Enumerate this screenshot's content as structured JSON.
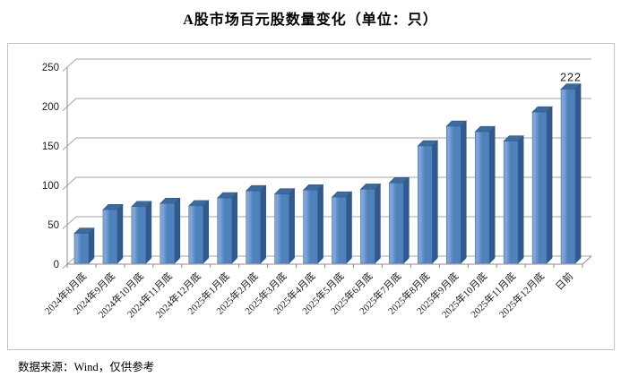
{
  "title": "A股市场百元股数量变化（单位：只）",
  "source_note": "数据来源：Wind，仅供参考",
  "chart_data": {
    "type": "bar",
    "style": "3d-column",
    "title": "A股市场百元股数量变化（单位：只）",
    "unit": "只",
    "categories": [
      "2024年8月底",
      "2024年9月底",
      "2024年10月底",
      "2024年11月底",
      "2024年12月底",
      "2025年1月底",
      "2025年2月底",
      "2025年3月底",
      "2025年4月底",
      "2025年5月底",
      "2025年6月底",
      "2025年7月底",
      "2025年8月底",
      "2025年9月底",
      "2025年10月底",
      "2025年11月底",
      "2025年12月底",
      "日前"
    ],
    "values": [
      39,
      69,
      73,
      77,
      74,
      84,
      93,
      89,
      94,
      85,
      95,
      103,
      150,
      175,
      168,
      156,
      193,
      222
    ],
    "labeled_points": [
      {
        "index": 17,
        "label": "222"
      }
    ],
    "xlabel": "",
    "ylabel": "",
    "ylim": [
      0,
      250
    ],
    "yticks": [
      0,
      50,
      100,
      150,
      200,
      250
    ],
    "grid": true,
    "legend": "none",
    "colors": {
      "bar_front": "#4F81BD",
      "bar_front_highlight": "#7FA5D3",
      "bar_side": "#31598C",
      "bar_top": "#3D699C",
      "bar_edge": "#2D547E",
      "gridline": "#A6A6A6",
      "axis": "#8C8C8C",
      "text": "#1a1a1a"
    }
  }
}
